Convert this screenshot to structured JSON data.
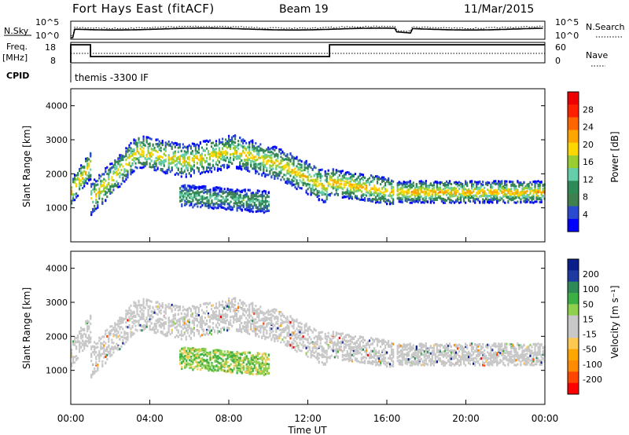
{
  "header": {
    "site": "Fort Hays East (fitACF)",
    "beam": "Beam 19",
    "date": "11/Mar/2015"
  },
  "strip_panels": {
    "nsky_label": "N.Sky",
    "nsky_ticks": [
      "10^5",
      "10^0"
    ],
    "nsearch_label": "N.Search",
    "nsearch_ticks": [
      "10^5",
      "10^0"
    ],
    "freq_label": "Freq.",
    "freq_unit": "[MHz]",
    "freq_ticks": [
      "18",
      "8"
    ],
    "nave_label": "Nave",
    "nave_ticks": [
      "60",
      "0"
    ],
    "cpid_label": "CPID",
    "cpid_value": "themis -3300 IF"
  },
  "colors": {
    "power_scale": [
      "#0000ff",
      "#2a4bd0",
      "#3f8050",
      "#2e8b57",
      "#66cdaa",
      "#9acd32",
      "#ffd700",
      "#ffa500",
      "#ff6600",
      "#ff2000",
      "#ee0000"
    ],
    "velocity_scale": [
      "#ff0000",
      "#ff4500",
      "#ff8c00",
      "#ffa500",
      "#ffc850",
      "#c8c8c8",
      "#c8c8c8",
      "#8fd04f",
      "#3cb043",
      "#2e8b57",
      "#1e3aa0",
      "#0a1e8c"
    ],
    "ground_scatter": "#c8c8c8"
  },
  "chart_data": [
    {
      "type": "heatmap",
      "name": "power",
      "ylabel": "Slant Range [km]",
      "yticks": [
        1000,
        2000,
        3000,
        4000
      ],
      "ylim": [
        0,
        4500
      ],
      "xlim": [
        0,
        24
      ],
      "colorbar_label": "Power [dB]",
      "colorbar_ticks": [
        "28",
        "24",
        "20",
        "16",
        "12",
        "8",
        "4"
      ],
      "colorbar_range": [
        0,
        32
      ],
      "scatter_bands": [
        {
          "t_start": 0.0,
          "t_end": 1.0,
          "range_center": [
            1500,
            2300
          ],
          "width": 500,
          "power": 22
        },
        {
          "t_start": 1.0,
          "t_end": 13.0,
          "range_center": [
            1300,
            2700,
            2400,
            2700,
            2300,
            1600
          ],
          "width": 600,
          "power": 20
        },
        {
          "t_start": 5.5,
          "t_end": 10.0,
          "range_center": [
            1400,
            1300,
            1200
          ],
          "width": 400,
          "power": 12
        },
        {
          "t_start": 13.0,
          "t_end": 16.3,
          "range_center": [
            1800,
            1500
          ],
          "width": 500,
          "power": 22
        },
        {
          "t_start": 16.5,
          "t_end": 24.0,
          "range_center": [
            1500,
            1500
          ],
          "width": 400,
          "power": 22
        }
      ]
    },
    {
      "type": "heatmap",
      "name": "velocity",
      "ylabel": "Slant Range [km]",
      "yticks": [
        1000,
        2000,
        3000,
        4000
      ],
      "ylim": [
        0,
        4500
      ],
      "xlim": [
        0,
        24
      ],
      "xticks": [
        "00:00",
        "04:00",
        "08:00",
        "12:00",
        "16:00",
        "20:00",
        "00:00"
      ],
      "xlabel": "Time UT",
      "colorbar_label": "Velocity [m s⁻¹]",
      "colorbar_ticks": [
        "200",
        "100",
        "50",
        "15",
        "-15",
        "-50",
        "-100",
        "-200"
      ],
      "colorbar_range": [
        -250,
        250
      ]
    }
  ]
}
